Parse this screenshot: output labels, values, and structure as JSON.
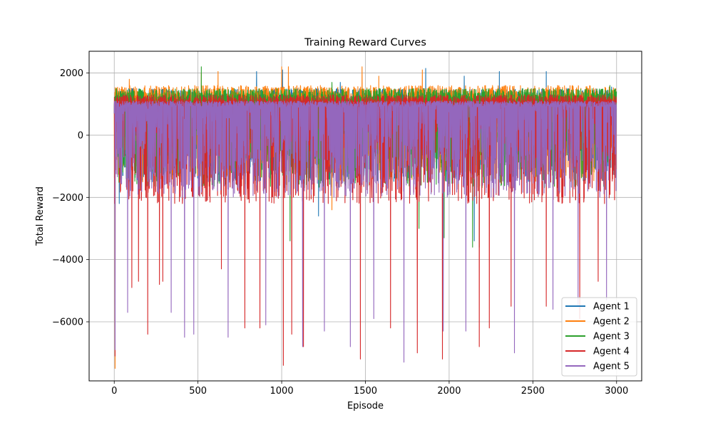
{
  "chart_data": {
    "type": "line",
    "title": "Training Reward Curves",
    "xlabel": "Episode",
    "ylabel": "Total Reward",
    "xlim": [
      -150,
      3150
    ],
    "ylim": [
      -7900,
      2700
    ],
    "xticks": [
      0,
      500,
      1000,
      1500,
      2000,
      2500,
      3000
    ],
    "yticks": [
      -6000,
      -4000,
      -2000,
      0,
      2000
    ],
    "xtick_labels": [
      "0",
      "500",
      "1000",
      "1500",
      "2000",
      "2500",
      "3000"
    ],
    "ytick_labels": [
      "−6000",
      "−4000",
      "−2000",
      "0",
      "2000"
    ],
    "grid": true,
    "legend_position": "lower-right",
    "episodes": 3000,
    "series": [
      {
        "name": "Agent 1",
        "color": "#1f77b4",
        "typical_range": [
          -1500,
          1500
        ],
        "peaks": [
          [
            850,
            2050
          ],
          [
            1005,
            2100
          ],
          [
            1350,
            1700
          ],
          [
            1860,
            2150
          ],
          [
            2090,
            1900
          ],
          [
            2300,
            2050
          ],
          [
            2580,
            2050
          ],
          [
            2970,
            1550
          ]
        ],
        "dips": [
          [
            30,
            -2200
          ],
          [
            1220,
            -2600
          ],
          [
            2150,
            -3400
          ]
        ]
      },
      {
        "name": "Agent 2",
        "color": "#ff7f0e",
        "typical_range": [
          -1500,
          1600
        ],
        "peaks": [
          [
            10,
            1300
          ],
          [
            90,
            1800
          ],
          [
            520,
            2000
          ],
          [
            620,
            2050
          ],
          [
            1000,
            2200
          ],
          [
            1040,
            2200
          ],
          [
            1480,
            2200
          ],
          [
            1580,
            1900
          ],
          [
            1840,
            2100
          ]
        ],
        "dips": [
          [
            5,
            -7500
          ],
          [
            400,
            -1500
          ],
          [
            1300,
            -2400
          ]
        ]
      },
      {
        "name": "Agent 3",
        "color": "#2ca02c",
        "typical_range": [
          -1700,
          1500
        ],
        "peaks": [
          [
            520,
            2200
          ],
          [
            1300,
            1700
          ],
          [
            2960,
            1600
          ]
        ],
        "dips": [
          [
            1050,
            -3400
          ],
          [
            1820,
            -3000
          ],
          [
            1970,
            -3300
          ],
          [
            2140,
            -3600
          ],
          [
            2180,
            -3600
          ]
        ]
      },
      {
        "name": "Agent 4",
        "color": "#d62728",
        "typical_range": [
          -2200,
          1300
        ],
        "peaks": [
          [
            70,
            1300
          ],
          [
            650,
            1300
          ],
          [
            2500,
            1200
          ]
        ],
        "dips": [
          [
            5,
            -7100
          ],
          [
            105,
            -4900
          ],
          [
            145,
            -4700
          ],
          [
            200,
            -6400
          ],
          [
            270,
            -4800
          ],
          [
            290,
            -4700
          ],
          [
            640,
            -4300
          ],
          [
            780,
            -6200
          ],
          [
            870,
            -6200
          ],
          [
            1010,
            -7400
          ],
          [
            1060,
            -6400
          ],
          [
            1130,
            -6800
          ],
          [
            1470,
            -7200
          ],
          [
            1650,
            -6200
          ],
          [
            1810,
            -7000
          ],
          [
            1960,
            -7200
          ],
          [
            2180,
            -6800
          ],
          [
            2240,
            -6200
          ],
          [
            2370,
            -5500
          ],
          [
            2580,
            -5500
          ],
          [
            2780,
            -5900
          ],
          [
            2890,
            -4700
          ]
        ]
      },
      {
        "name": "Agent 5",
        "color": "#9467bd",
        "typical_range": [
          -2000,
          1100
        ],
        "peaks": [
          [
            1300,
            1100
          ]
        ],
        "dips": [
          [
            5,
            -6900
          ],
          [
            80,
            -5700
          ],
          [
            340,
            -5700
          ],
          [
            420,
            -6500
          ],
          [
            475,
            -6400
          ],
          [
            680,
            -6500
          ],
          [
            905,
            -6100
          ],
          [
            1125,
            -6800
          ],
          [
            1255,
            -6300
          ],
          [
            1410,
            -6800
          ],
          [
            1550,
            -5900
          ],
          [
            1730,
            -7300
          ],
          [
            1965,
            -6300
          ],
          [
            2100,
            -6300
          ],
          [
            2390,
            -7000
          ],
          [
            2620,
            -5600
          ],
          [
            2770,
            -5500
          ],
          [
            2940,
            -5300
          ]
        ]
      }
    ]
  }
}
